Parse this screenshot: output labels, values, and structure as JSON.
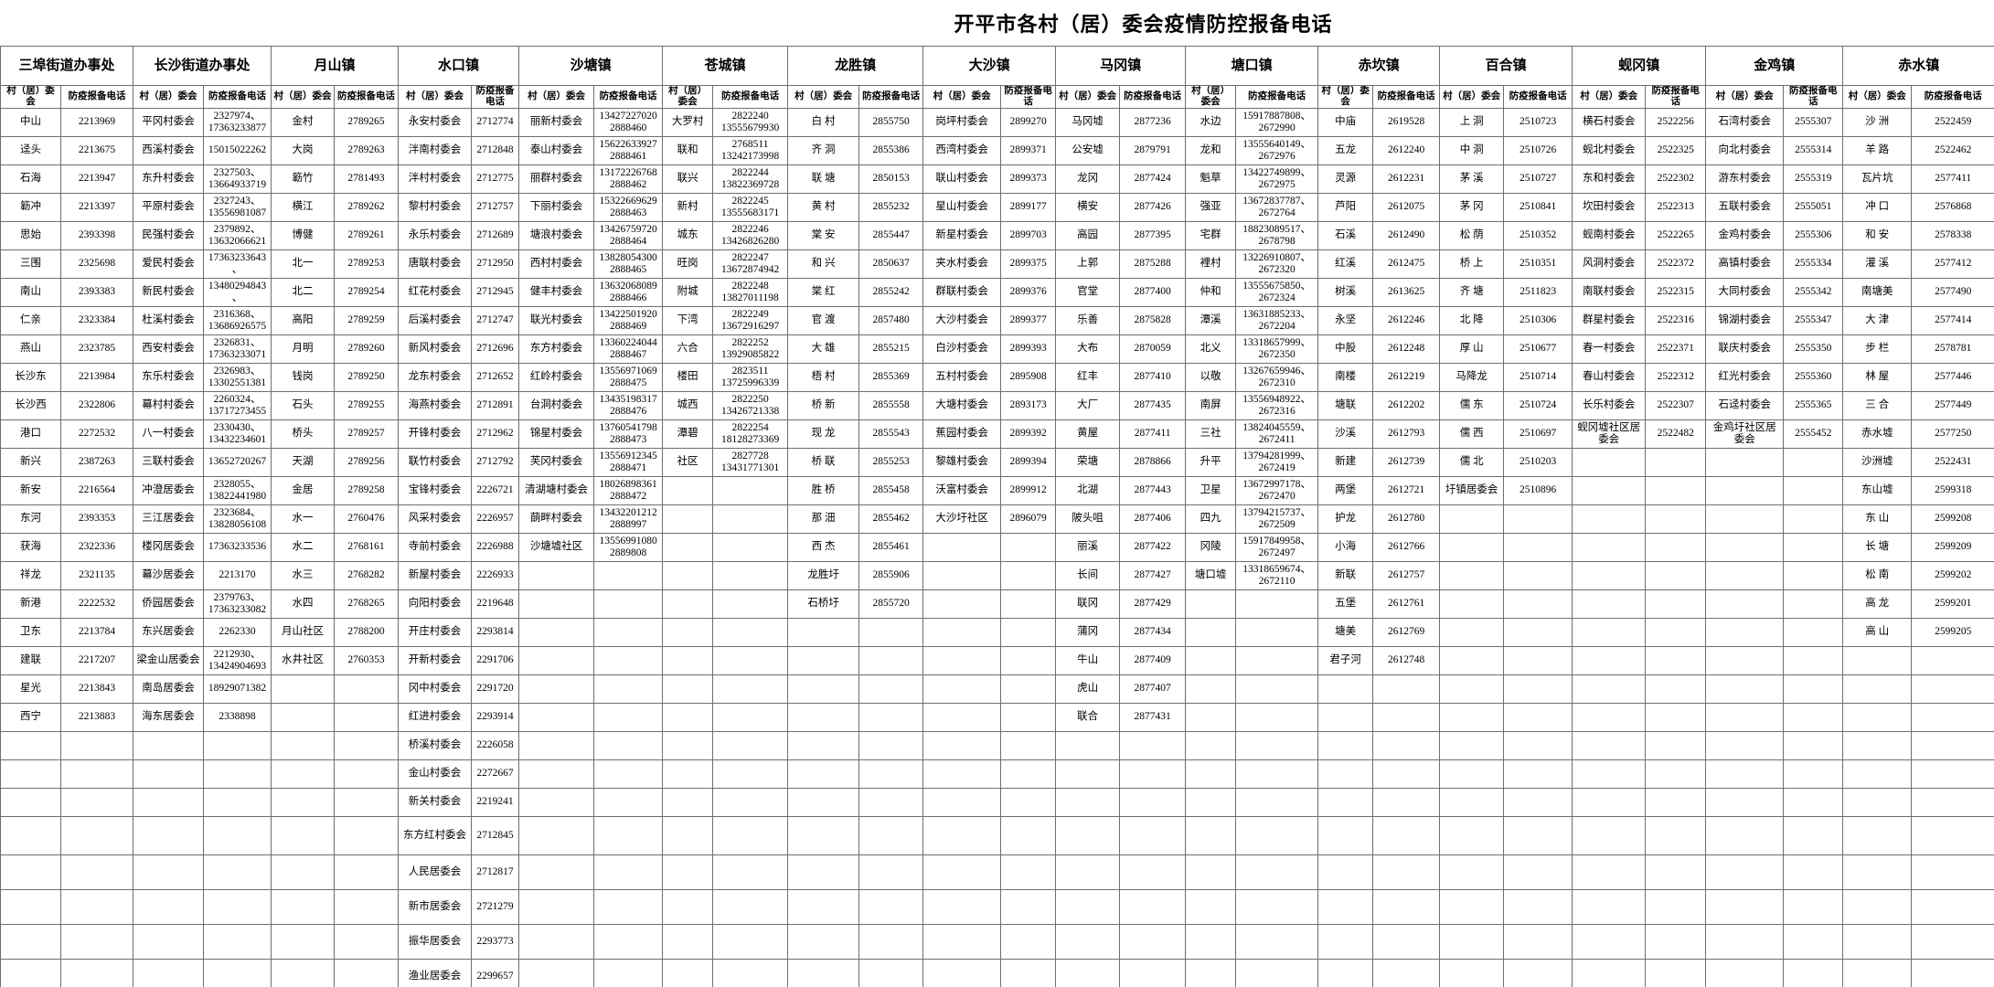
{
  "title": "开平市各村（居）委会疫情防控报备电话",
  "column_headers": {
    "village": "村（居）委会",
    "phone": "防疫报备电话"
  },
  "groups": [
    {
      "name": "三埠街道办事处",
      "rows": [
        [
          "中山",
          "2213969"
        ],
        [
          "迳头",
          "2213675"
        ],
        [
          "石海",
          "2213947"
        ],
        [
          "簕冲",
          "2213397"
        ],
        [
          "思始",
          "2393398"
        ],
        [
          "三围",
          "2325698"
        ],
        [
          "南山",
          "2393383"
        ],
        [
          "仁亲",
          "2323384"
        ],
        [
          "燕山",
          "2323785"
        ],
        [
          "长沙东",
          "2213984"
        ],
        [
          "长沙西",
          "2322806"
        ],
        [
          "港口",
          "2272532"
        ],
        [
          "新兴",
          "2387263"
        ],
        [
          "新安",
          "2216564"
        ],
        [
          "东河",
          "2393353"
        ],
        [
          "获海",
          "2322336"
        ],
        [
          "祥龙",
          "2321135"
        ],
        [
          "新港",
          "2222532"
        ],
        [
          "卫东",
          "2213784"
        ],
        [
          "建联",
          "2217207"
        ],
        [
          "星光",
          "2213843"
        ],
        [
          "西宁",
          "2213883"
        ]
      ]
    },
    {
      "name": "长沙街道办事处",
      "rows": [
        [
          "平冈村委会",
          "2327974、\n17363233877"
        ],
        [
          "西溪村委会",
          "15015022262"
        ],
        [
          "东升村委会",
          "2327503、\n13664933719"
        ],
        [
          "平原村委会",
          "2327243、\n13556981087"
        ],
        [
          "民强村委会",
          "2379892、\n13632066621"
        ],
        [
          "爱民村委会",
          "17363233643\n、"
        ],
        [
          "新民村委会",
          "13480294843\n、"
        ],
        [
          "杜溪村委会",
          "2316368、\n13686926575"
        ],
        [
          "西安村委会",
          "2326831、\n17363233071"
        ],
        [
          "东乐村委会",
          "2326983、\n13302551381"
        ],
        [
          "幕村村委会",
          "2260324、\n13717273455"
        ],
        [
          "八一村委会",
          "2330430、\n13432234601"
        ],
        [
          "三联村委会",
          "13652720267"
        ],
        [
          "冲澄居委会",
          "2328055、\n13822441980"
        ],
        [
          "三江居委会",
          "2323684、\n13828056108"
        ],
        [
          "楼冈居委会",
          "17363233536"
        ],
        [
          "幕沙居委会",
          "2213170"
        ],
        [
          "侨园居委会",
          "2379763、\n17363233082"
        ],
        [
          "东兴居委会",
          "2262330"
        ],
        [
          "梁金山居委会",
          "2212930、\n13424904693"
        ],
        [
          "南岛居委会",
          "18929071382"
        ],
        [
          "海东居委会",
          "2338898"
        ]
      ]
    },
    {
      "name": "月山镇",
      "rows": [
        [
          "金村",
          "2789265"
        ],
        [
          "大岗",
          "2789263"
        ],
        [
          "簕竹",
          "2781493"
        ],
        [
          "横江",
          "2789262"
        ],
        [
          "博健",
          "2789261"
        ],
        [
          "北一",
          "2789253"
        ],
        [
          "北二",
          "2789254"
        ],
        [
          "高阳",
          "2789259"
        ],
        [
          "月明",
          "2789260"
        ],
        [
          "钱岗",
          "2789250"
        ],
        [
          "石头",
          "2789255"
        ],
        [
          "桥头",
          "2789257"
        ],
        [
          "天湖",
          "2789256"
        ],
        [
          "金居",
          "2789258"
        ],
        [
          "水一",
          "2760476"
        ],
        [
          "水二",
          "2768161"
        ],
        [
          "水三",
          "2768282"
        ],
        [
          "水四",
          "2768265"
        ],
        [
          "月山社区",
          "2788200"
        ],
        [
          "水井社区",
          "2760353"
        ]
      ]
    },
    {
      "name": "水口镇",
      "rows": [
        [
          "永安村委会",
          "2712774"
        ],
        [
          "泮南村委会",
          "2712848"
        ],
        [
          "泮村村委会",
          "2712775"
        ],
        [
          "黎村村委会",
          "2712757"
        ],
        [
          "永乐村委会",
          "2712689"
        ],
        [
          "唐联村委会",
          "2712950"
        ],
        [
          "红花村委会",
          "2712945"
        ],
        [
          "后溪村委会",
          "2712747"
        ],
        [
          "新风村委会",
          "2712696"
        ],
        [
          "龙东村委会",
          "2712652"
        ],
        [
          "海燕村委会",
          "2712891"
        ],
        [
          "开锋村委会",
          "2712962"
        ],
        [
          "联竹村委会",
          "2712792"
        ],
        [
          "宝锋村委会",
          "2226721"
        ],
        [
          "风采村委会",
          "2226957"
        ],
        [
          "寺前村委会",
          "2226988"
        ],
        [
          "新屋村委会",
          "2226933"
        ],
        [
          "向阳村委会",
          "2219648"
        ],
        [
          "开庄村委会",
          "2293814"
        ],
        [
          "开新村委会",
          "2291706"
        ],
        [
          "冈中村委会",
          "2291720"
        ],
        [
          "红进村委会",
          "2293914"
        ],
        [
          "桥溪村委会",
          "2226058"
        ],
        [
          "金山村委会",
          "2272667"
        ],
        [
          "新关村委会",
          "2219241"
        ],
        [
          "东方红村委会",
          "2712845"
        ],
        [
          "人民居委会",
          "2712817"
        ],
        [
          "新市居委会",
          "2721279"
        ],
        [
          "振华居委会",
          "2293773"
        ],
        [
          "渔业居委会",
          "2299657"
        ]
      ]
    },
    {
      "name": "沙塘镇",
      "rows": [
        [
          "丽新村委会",
          "13427227020\n2888460"
        ],
        [
          "泰山村委会",
          "15622633927\n2888461"
        ],
        [
          "丽群村委会",
          "13172226768\n2888462"
        ],
        [
          "下丽村委会",
          "15322669629\n2888463"
        ],
        [
          "塘浪村委会",
          "13426759720\n2888464"
        ],
        [
          "西村村委会",
          "13828054300\n2888465"
        ],
        [
          "健丰村委会",
          "13632068089\n2888466"
        ],
        [
          "联光村委会",
          "13422501920\n2888469"
        ],
        [
          "东方村委会",
          "13360224044\n2888467"
        ],
        [
          "红岭村委会",
          "13556971069\n2888475"
        ],
        [
          "台洞村委会",
          "13435198317\n2888476"
        ],
        [
          "锦星村委会",
          "13760541798\n2888473"
        ],
        [
          "芙冈村委会",
          "13556912345\n2888471"
        ],
        [
          "清湖塘村委会",
          "18026898361\n2888472"
        ],
        [
          "蓢畔村委会",
          "13432201212\n2888997"
        ],
        [
          "沙塘墟社区",
          "13556991080\n2889808"
        ]
      ]
    },
    {
      "name": "苍城镇",
      "rows": [
        [
          "大罗村",
          "2822240\n13555679930"
        ],
        [
          "联和",
          "2768511\n13242173998"
        ],
        [
          "联兴",
          "2822244\n13822369728"
        ],
        [
          "新村",
          "2822245\n13555683171"
        ],
        [
          "城东",
          "2822246\n13426826280"
        ],
        [
          "旺岗",
          "2822247\n13672874942"
        ],
        [
          "附城",
          "2822248\n13827011198"
        ],
        [
          "下湾",
          "2822249\n13672916297"
        ],
        [
          "六合",
          "2822252\n13929085822"
        ],
        [
          "楼田",
          "2823511\n13725996339"
        ],
        [
          "城西",
          "2822250\n13426721338"
        ],
        [
          "潭碧",
          "2822254\n18128273369"
        ],
        [
          "社区",
          "2827728\n13431771301"
        ]
      ]
    },
    {
      "name": "龙胜镇",
      "rows": [
        [
          "白 村",
          "2855750"
        ],
        [
          "齐 洞",
          "2855386"
        ],
        [
          "联 塘",
          "2850153"
        ],
        [
          "黄 村",
          "2855232"
        ],
        [
          "棠 安",
          "2855447"
        ],
        [
          "和 兴",
          "2850637"
        ],
        [
          "棠 红",
          "2855242"
        ],
        [
          "官 渡",
          "2857480"
        ],
        [
          "大 雄",
          "2855215"
        ],
        [
          "梧 村",
          "2855369"
        ],
        [
          "桥 新",
          "2855558"
        ],
        [
          "现 龙",
          "2855543"
        ],
        [
          "桥 联",
          "2855253"
        ],
        [
          "胜 桥",
          "2855458"
        ],
        [
          "那 沺",
          "2855462"
        ],
        [
          "西 杰",
          "2855461"
        ],
        [
          "龙胜圩",
          "2855906"
        ],
        [
          "石桥圩",
          "2855720"
        ]
      ]
    },
    {
      "name": "大沙镇",
      "rows": [
        [
          "岗坪村委会",
          "2899270"
        ],
        [
          "西湾村委会",
          "2899371"
        ],
        [
          "联山村委会",
          "2899373"
        ],
        [
          "星山村委会",
          "2899177"
        ],
        [
          "新星村委会",
          "2899703"
        ],
        [
          "夹水村委会",
          "2899375"
        ],
        [
          "群联村委会",
          "2899376"
        ],
        [
          "大沙村委会",
          "2899377"
        ],
        [
          "白沙村委会",
          "2899393"
        ],
        [
          "五村村委会",
          "2895908"
        ],
        [
          "大塘村委会",
          "2893173"
        ],
        [
          "蕉园村委会",
          "2899392"
        ],
        [
          "黎雄村委会",
          "2899394"
        ],
        [
          "沃富村委会",
          "2899912"
        ],
        [
          "大沙圩社区",
          "2896079"
        ]
      ]
    },
    {
      "name": "马冈镇",
      "rows": [
        [
          "马冈墟",
          "2877236"
        ],
        [
          "公安墟",
          "2879791"
        ],
        [
          "龙冈",
          "2877424"
        ],
        [
          "横安",
          "2877426"
        ],
        [
          "高园",
          "2877395"
        ],
        [
          "上郭",
          "2875288"
        ],
        [
          "官堂",
          "2877400"
        ],
        [
          "乐善",
          "2875828"
        ],
        [
          "大布",
          "2870059"
        ],
        [
          "红丰",
          "2877410"
        ],
        [
          "大厂",
          "2877435"
        ],
        [
          "黄屋",
          "2877411"
        ],
        [
          "荣塘",
          "2878866"
        ],
        [
          "北湖",
          "2877443"
        ],
        [
          "陂头咀",
          "2877406"
        ],
        [
          "丽溪",
          "2877422"
        ],
        [
          "长间",
          "2877427"
        ],
        [
          "联冈",
          "2877429"
        ],
        [
          "蒲冈",
          "2877434"
        ],
        [
          "牛山",
          "2877409"
        ],
        [
          "虎山",
          "2877407"
        ],
        [
          "联合",
          "2877431"
        ]
      ]
    },
    {
      "name": "塘口镇",
      "rows": [
        [
          "水边",
          "15917887808、\n2672990"
        ],
        [
          "龙和",
          "13555640149、\n2672976"
        ],
        [
          "魁草",
          "13422749899、\n2672975"
        ],
        [
          "强亚",
          "13672837787、\n2672764"
        ],
        [
          "宅群",
          "18823089517、\n2678798"
        ],
        [
          "裡村",
          "13226910807、\n2672320"
        ],
        [
          "仲和",
          "13555675850、\n2672324"
        ],
        [
          "潭溪",
          "13631885233、\n2672204"
        ],
        [
          "北义",
          "13318657999、\n2672350"
        ],
        [
          "以敬",
          "13267659946、\n2672310"
        ],
        [
          "南屏",
          "13556948922、\n2672316"
        ],
        [
          "三社",
          "13824045559、\n2672411"
        ],
        [
          "升平",
          "13794281999、\n2672419"
        ],
        [
          "卫星",
          "13672997178、\n2672470"
        ],
        [
          "四九",
          "13794215737、\n2672509"
        ],
        [
          "冈陵",
          "15917849958、\n2672497"
        ],
        [
          "塘口墟",
          "13318659674、\n2672110"
        ]
      ]
    },
    {
      "name": "赤坎镇",
      "rows": [
        [
          "中庙",
          "2619528"
        ],
        [
          "五龙",
          "2612240"
        ],
        [
          "灵源",
          "2612231"
        ],
        [
          "芦阳",
          "2612075"
        ],
        [
          "石溪",
          "2612490"
        ],
        [
          "红溪",
          "2612475"
        ],
        [
          "树溪",
          "2613625"
        ],
        [
          "永坚",
          "2612246"
        ],
        [
          "中股",
          "2612248"
        ],
        [
          "南楼",
          "2612219"
        ],
        [
          "塘联",
          "2612202"
        ],
        [
          "沙溪",
          "2612793"
        ],
        [
          "新建",
          "2612739"
        ],
        [
          "两堡",
          "2612721"
        ],
        [
          "护龙",
          "2612780"
        ],
        [
          "小海",
          "2612766"
        ],
        [
          "新联",
          "2612757"
        ],
        [
          "五堡",
          "2612761"
        ],
        [
          "塘美",
          "2612769"
        ],
        [
          "君子河",
          "2612748"
        ]
      ]
    },
    {
      "name": "百合镇",
      "rows": [
        [
          "上 洞",
          "2510723"
        ],
        [
          "中 洞",
          "2510726"
        ],
        [
          "茅 溪",
          "2510727"
        ],
        [
          "茅 冈",
          "2510841"
        ],
        [
          "松 荫",
          "2510352"
        ],
        [
          "桥 上",
          "2510351"
        ],
        [
          "齐 塘",
          "2511823"
        ],
        [
          "北 降",
          "2510306"
        ],
        [
          "厚 山",
          "2510677"
        ],
        [
          "马降龙",
          "2510714"
        ],
        [
          "儒 东",
          "2510724"
        ],
        [
          "儒 西",
          "2510697"
        ],
        [
          "儒 北",
          "2510203"
        ],
        [
          "圩镇居委会",
          "2510896"
        ]
      ]
    },
    {
      "name": "蚬冈镇",
      "rows": [
        [
          "横石村委会",
          "2522256"
        ],
        [
          "蚬北村委会",
          "2522325"
        ],
        [
          "东和村委会",
          "2522302"
        ],
        [
          "坎田村委会",
          "2522313"
        ],
        [
          "蚬南村委会",
          "2522265"
        ],
        [
          "风洞村委会",
          "2522372"
        ],
        [
          "南联村委会",
          "2522315"
        ],
        [
          "群星村委会",
          "2522316"
        ],
        [
          "春一村委会",
          "2522371"
        ],
        [
          "春山村委会",
          "2522312"
        ],
        [
          "长乐村委会",
          "2522307"
        ],
        [
          "蚬冈墟社区居委会",
          "2522482"
        ]
      ]
    },
    {
      "name": "金鸡镇",
      "rows": [
        [
          "石湾村委会",
          "2555307"
        ],
        [
          "向北村委会",
          "2555314"
        ],
        [
          "游东村委会",
          "2555319"
        ],
        [
          "五联村委会",
          "2555051"
        ],
        [
          "金鸡村委会",
          "2555306"
        ],
        [
          "高镇村委会",
          "2555334"
        ],
        [
          "大同村委会",
          "2555342"
        ],
        [
          "锦湖村委会",
          "2555347"
        ],
        [
          "联庆村委会",
          "2555350"
        ],
        [
          "红光村委会",
          "2555360"
        ],
        [
          "石迳村委会",
          "2555365"
        ],
        [
          "金鸡圩社区居委会",
          "2555452"
        ]
      ]
    },
    {
      "name": "赤水镇",
      "rows": [
        [
          "沙 洲",
          "2522459"
        ],
        [
          "羊 路",
          "2522462"
        ],
        [
          "瓦片坑",
          "2577411"
        ],
        [
          "冲 口",
          "2576868"
        ],
        [
          "和 安",
          "2578338"
        ],
        [
          "灌 溪",
          "2577412"
        ],
        [
          "南塘美",
          "2577490"
        ],
        [
          "大 津",
          "2577414"
        ],
        [
          "步 栏",
          "2578781"
        ],
        [
          "林 屋",
          "2577446"
        ],
        [
          "三 合",
          "2577449"
        ],
        [
          "赤水墟",
          "2577250"
        ],
        [
          "沙洲墟",
          "2522431"
        ],
        [
          "东山墟",
          "2599318"
        ],
        [
          "东 山",
          "2599208"
        ],
        [
          "长 塘",
          "2599209"
        ],
        [
          "松 南",
          "2599202"
        ],
        [
          "高 龙",
          "2599201"
        ],
        [
          "高 山",
          "2599205"
        ]
      ]
    }
  ]
}
